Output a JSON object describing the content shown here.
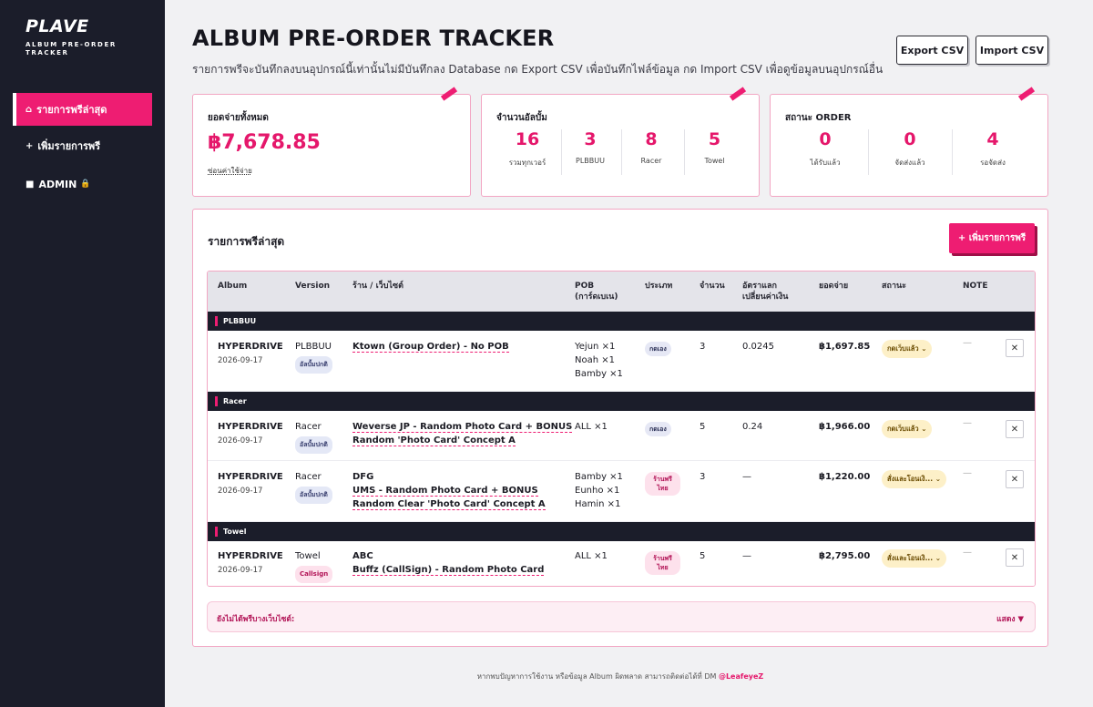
{
  "sidebar": {
    "logo": "PLAVE",
    "subtitle": "ALBUM PRE-ORDER TRACKER",
    "items": [
      {
        "icon": "home-icon",
        "label": "รายการพรีล่าสุด",
        "glyph": "⌂"
      },
      {
        "icon": "plus-icon",
        "label": "เพิ่มรายการพรี",
        "glyph": "+"
      },
      {
        "icon": "square-icon",
        "label": "ADMIN",
        "glyph": "■",
        "suffix": "🔒"
      }
    ]
  },
  "header": {
    "title": "ALBUM PRE-ORDER TRACKER",
    "description": "รายการพรีจะบันทึกลงบนอุปกรณ์นี้เท่านั้นไม่มีบันทึกลง Database กด Export CSV เพื่อบันทึกไฟล์ข้อมูล กด Import CSV เพื่อดูข้อมูลบนอุปกรณ์อื่น",
    "export_label": "Export CSV",
    "import_label": "Import CSV"
  },
  "stats": {
    "total": {
      "label": "ยอดจ่ายทั้งหมด",
      "amount": "฿7,678.85",
      "link": "ซ่อนค่าใช้จ่าย"
    },
    "albums": {
      "label": "จำนวนอัลบั้ม",
      "cells": [
        {
          "value": "16",
          "label": "รวมทุกเวอร์"
        },
        {
          "value": "3",
          "label": "PLBBUU"
        },
        {
          "value": "8",
          "label": "Racer"
        },
        {
          "value": "5",
          "label": "Towel"
        }
      ]
    },
    "order": {
      "label": "สถานะ ORDER",
      "cells": [
        {
          "value": "0",
          "label": "ได้รับแล้ว"
        },
        {
          "value": "0",
          "label": "จัดส่งแล้ว"
        },
        {
          "value": "4",
          "label": "รอจัดส่ง"
        }
      ]
    }
  },
  "list": {
    "title": "รายการพรีล่าสุด",
    "add_label": "+ เพิ่มรายการพรี",
    "headers": {
      "album": "Album",
      "version": "Version",
      "shop": "ร้าน / เว็บไซต์",
      "pob": "POB\n(การ์ดเบเน)",
      "type": "ประเภท",
      "qty": "จำนวน",
      "rate": "อัตราแลก\nเปลี่ยนค่าเงิน",
      "paid": "ยอดจ่าย",
      "status": "สถานะ",
      "note": "NOTE"
    },
    "groups": [
      {
        "name": "PLBBUU",
        "rows": [
          {
            "album": "HYPERDRIVE",
            "date": "2026-09-17",
            "version": "PLBBUU",
            "version_badge": "อัลบั้มปกติ",
            "shop_lines": [
              "Ktown (Group Order) - No POB"
            ],
            "pob": [
              "Yejun ×1",
              "Noah ×1",
              "Bamby ×1"
            ],
            "type": "กดเอง",
            "qty": "3",
            "rate": "0.0245",
            "paid": "฿1,697.85",
            "status": "กดเว็บแล้ว ⌄",
            "note": "—"
          }
        ]
      },
      {
        "name": "Racer",
        "rows": [
          {
            "album": "HYPERDRIVE",
            "date": "2026-09-17",
            "version": "Racer",
            "version_badge": "อัลบั้มปกติ",
            "shop_lines": [
              "Weverse JP - Random Photo Card + BONUS",
              "Random 'Photo Card' Concept A"
            ],
            "pob": [
              "ALL ×1"
            ],
            "type": "กดเอง",
            "qty": "5",
            "rate": "0.24",
            "paid": "฿1,966.00",
            "status": "กดเว็บแล้ว ⌄",
            "note": "—"
          },
          {
            "album": "HYPERDRIVE",
            "date": "2026-09-17",
            "version": "Racer",
            "version_badge": "อัลบั้มปกติ",
            "shop_lines": [
              "DFG",
              "UMS - Random Photo Card + BONUS",
              "Random Clear 'Photo Card' Concept A"
            ],
            "pob": [
              "Bamby ×1",
              "Eunho ×1",
              "Hamin ×1"
            ],
            "type": "ร้านพรีไทย",
            "qty": "3",
            "rate": "—",
            "paid": "฿1,220.00",
            "status": "สั่งและโอนเงิ... ⌄",
            "note": "—"
          }
        ]
      },
      {
        "name": "Towel",
        "rows": [
          {
            "album": "HYPERDRIVE",
            "date": "2026-09-17",
            "version": "Towel",
            "version_badge": "Callsign",
            "shop_lines": [
              "ABC",
              "Buffz (CallSign) - Random Photo Card"
            ],
            "pob": [
              "ALL ×1"
            ],
            "type": "ร้านพรีไทย",
            "qty": "5",
            "rate": "—",
            "paid": "฿2,795.00",
            "status": "สั่งและโอนเงิ... ⌄",
            "note": "—"
          }
        ]
      }
    ],
    "unfound_label": "ยังไม่ได้พรีบางเว็บไซต์:",
    "show_label": "แสดง ▼"
  },
  "footer": {
    "text": "หากพบปัญหาการใช้งาน หรือข้อมูล Album ผิดพลาด สามารถติดต่อได้ที่ DM ",
    "handle": "@LeafeyeZ"
  },
  "colors": {
    "accent": "#ee1d72",
    "sidebar": "#1b1d2a",
    "status": "#fdf0c8"
  }
}
